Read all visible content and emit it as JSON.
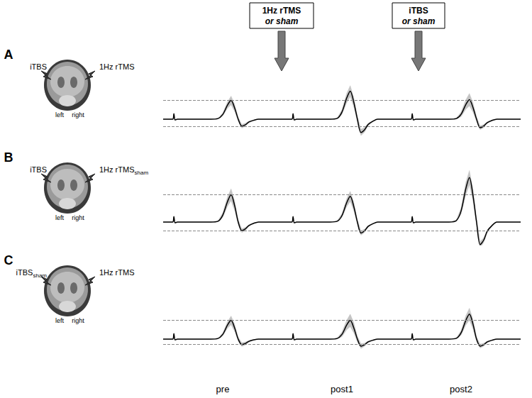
{
  "chart_data": {
    "type": "line",
    "tick_labels": false,
    "color": "#000000",
    "x": [
      0,
      8,
      9,
      10,
      12,
      40,
      46,
      50,
      54,
      57,
      60,
      63,
      66,
      69,
      72,
      76,
      80,
      86,
      100
    ],
    "xlim": [
      0,
      100
    ],
    "ylim": [
      -1.5,
      3.5
    ],
    "columns": [
      "pre",
      "post1",
      "post2"
    ],
    "interventions": [
      {
        "line1": "1Hz rTMS",
        "line2": "or sham"
      },
      {
        "line1": "iTBS",
        "line2": "or sham"
      }
    ],
    "rows": [
      {
        "label": "A",
        "left_site": {
          "text": "iTBS"
        },
        "right_site": {
          "text": "1Hz rTMS"
        },
        "hemispheres": [
          "left",
          "right"
        ],
        "ref_lines": [
          1.2,
          -0.45
        ],
        "traces": [
          {
            "values": [
              0,
              0,
              0.35,
              -0.05,
              0,
              0,
              0.04,
              0.3,
              0.9,
              1.2,
              0.72,
              0,
              -0.45,
              -0.36,
              -0.18,
              -0.07,
              0,
              0,
              0
            ],
            "sd": [
              0,
              0,
              0,
              0,
              0,
              0,
              0.02,
              0.1,
              0.2,
              0.28,
              0.22,
              0.12,
              0.12,
              0.1,
              0.05,
              0.02,
              0,
              0,
              0
            ]
          },
          {
            "values": [
              0,
              0,
              0.35,
              -0.05,
              0,
              0,
              0.05,
              0.45,
              1.35,
              1.8,
              1.08,
              0,
              -0.85,
              -0.68,
              -0.34,
              -0.13,
              0,
              0,
              0
            ],
            "sd": [
              0,
              0,
              0,
              0,
              0,
              0,
              0.03,
              0.15,
              0.3,
              0.35,
              0.3,
              0.18,
              0.2,
              0.15,
              0.08,
              0.03,
              0,
              0,
              0
            ]
          },
          {
            "values": [
              0,
              0,
              0.35,
              -0.05,
              0,
              0,
              0.04,
              0.31,
              0.94,
              1.25,
              0.75,
              0,
              -0.55,
              -0.44,
              -0.22,
              -0.08,
              0,
              0,
              0
            ],
            "sd": [
              0,
              0,
              0,
              0,
              0,
              0,
              0.03,
              0.15,
              0.3,
              0.4,
              0.3,
              0.15,
              0.12,
              0.1,
              0.05,
              0.02,
              0,
              0,
              0
            ]
          }
        ]
      },
      {
        "label": "B",
        "left_site": {
          "text": "iTBS"
        },
        "right_site": {
          "text": "1Hz rTMS",
          "subscript": "sham"
        },
        "hemispheres": [
          "left",
          "right"
        ],
        "ref_lines": [
          1.75,
          -0.55
        ],
        "traces": [
          {
            "values": [
              0,
              0,
              0.35,
              -0.05,
              0,
              0,
              0.05,
              0.44,
              1.31,
              1.75,
              1.05,
              0,
              -0.55,
              -0.44,
              -0.22,
              -0.08,
              0,
              0,
              0
            ],
            "sd": [
              0,
              0,
              0,
              0,
              0,
              0,
              0.03,
              0.15,
              0.3,
              0.38,
              0.3,
              0.15,
              0.12,
              0.1,
              0.05,
              0.02,
              0,
              0,
              0
            ]
          },
          {
            "values": [
              0,
              0,
              0.35,
              -0.05,
              0,
              0,
              0.05,
              0.41,
              1.24,
              1.65,
              0.99,
              0,
              -0.7,
              -0.56,
              -0.28,
              -0.11,
              0,
              0,
              0
            ],
            "sd": [
              0,
              0,
              0,
              0,
              0,
              0,
              0.03,
              0.12,
              0.25,
              0.32,
              0.26,
              0.14,
              0.14,
              0.1,
              0.05,
              0.02,
              0,
              0,
              0
            ]
          },
          {
            "values": [
              0,
              0,
              0.35,
              -0.05,
              0,
              0,
              0.09,
              0.71,
              2.14,
              2.85,
              1.71,
              0,
              -1.45,
              -1.16,
              -0.58,
              -0.22,
              0,
              0,
              0
            ],
            "sd": [
              0,
              0,
              0,
              0,
              0,
              0,
              0.04,
              0.2,
              0.4,
              0.45,
              0.38,
              0.2,
              0.2,
              0.15,
              0.08,
              0.03,
              0,
              0,
              0
            ]
          }
        ]
      },
      {
        "label": "C",
        "left_site": {
          "text": "iTBS",
          "subscript": "sham"
        },
        "right_site": {
          "text": "1Hz rTMS"
        },
        "hemispheres": [
          "left",
          "right"
        ],
        "ref_lines": [
          1.2,
          -0.35
        ],
        "traces": [
          {
            "values": [
              0,
              0,
              0.35,
              -0.05,
              0,
              0,
              0.04,
              0.3,
              0.9,
              1.2,
              0.72,
              0,
              -0.35,
              -0.28,
              -0.14,
              -0.05,
              0,
              0,
              0
            ],
            "sd": [
              0,
              0,
              0,
              0,
              0,
              0,
              0.02,
              0.1,
              0.2,
              0.28,
              0.22,
              0.12,
              0.12,
              0.1,
              0.05,
              0.02,
              0,
              0,
              0
            ]
          },
          {
            "values": [
              0,
              0,
              0.35,
              -0.05,
              0,
              0,
              0.04,
              0.3,
              0.9,
              1.2,
              0.72,
              0,
              -0.45,
              -0.36,
              -0.18,
              -0.07,
              0,
              0,
              0
            ],
            "sd": [
              0,
              0,
              0,
              0,
              0,
              0,
              0.03,
              0.15,
              0.3,
              0.4,
              0.32,
              0.18,
              0.15,
              0.1,
              0.05,
              0.02,
              0,
              0,
              0
            ]
          },
          {
            "values": [
              0,
              0,
              0.35,
              -0.05,
              0,
              0,
              0.05,
              0.4,
              1.2,
              1.6,
              0.96,
              0,
              -0.45,
              -0.36,
              -0.18,
              -0.07,
              0,
              0,
              0
            ],
            "sd": [
              0,
              0,
              0,
              0,
              0,
              0,
              0.03,
              0.15,
              0.3,
              0.38,
              0.3,
              0.15,
              0.12,
              0.1,
              0.05,
              0.02,
              0,
              0,
              0
            ]
          }
        ]
      }
    ]
  }
}
